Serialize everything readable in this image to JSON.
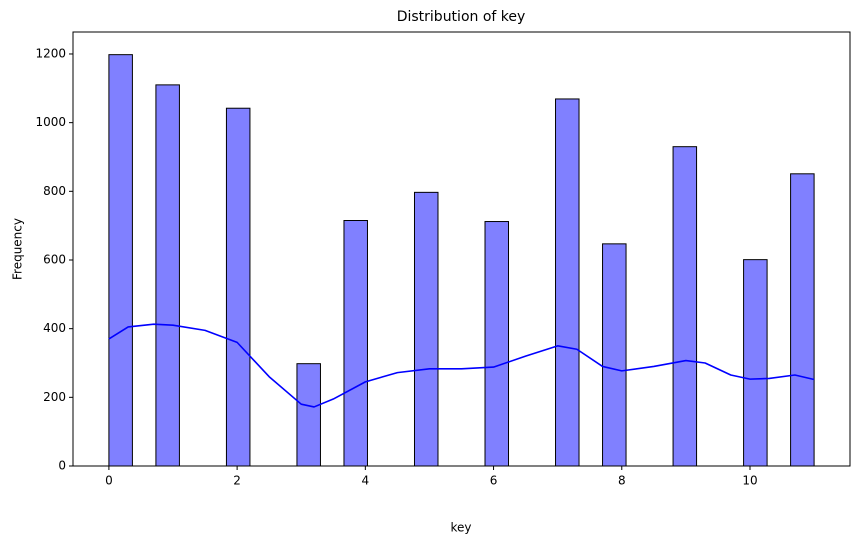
{
  "chart_data": {
    "type": "histogram",
    "title": "Distribution of key",
    "x_label": "key",
    "y_label": "Frequency",
    "bins": [
      0,
      0.3667,
      0.7333,
      1.1,
      1.4667,
      1.8333,
      2.2,
      2.5667,
      2.9333,
      3.3,
      3.6667,
      4.0333,
      4.4,
      4.7667,
      5.1333,
      5.5,
      5.8667,
      6.2333,
      6.6,
      6.9667,
      7.3333,
      7.7,
      8.0667,
      8.4333,
      8.8,
      9.1667,
      9.5333,
      9.9,
      10.2667,
      10.6333,
      11
    ],
    "counts": [
      1198,
      0,
      1110,
      0,
      0,
      1042,
      0,
      0,
      298,
      0,
      715,
      0,
      0,
      797,
      0,
      0,
      712,
      0,
      0,
      1069,
      0,
      647,
      0,
      0,
      930,
      0,
      0,
      601,
      0,
      851
    ],
    "color": "#8080ff",
    "edgecolor": "#000000",
    "kde": {
      "color": "#0000ff",
      "x": [
        0,
        0.3,
        0.7,
        1,
        1.5,
        2,
        2.5,
        3,
        3.2,
        3.5,
        4,
        4.5,
        5,
        5.5,
        6,
        6.5,
        7,
        7.3,
        7.7,
        8,
        8.5,
        9,
        9.3,
        9.7,
        10,
        10.3,
        10.7,
        11
      ],
      "y": [
        370,
        405,
        413,
        410,
        395,
        360,
        260,
        180,
        172,
        195,
        245,
        272,
        283,
        283,
        288,
        320,
        350,
        340,
        290,
        277,
        290,
        307,
        300,
        265,
        253,
        255,
        265,
        252
      ]
    },
    "xlim": [
      -0.56,
      11.56
    ],
    "ylim": [
      0,
      1264
    ],
    "xticks": [
      0,
      2,
      4,
      6,
      8,
      10
    ],
    "yticks": [
      0,
      200,
      400,
      600,
      800,
      1000,
      1200
    ]
  }
}
